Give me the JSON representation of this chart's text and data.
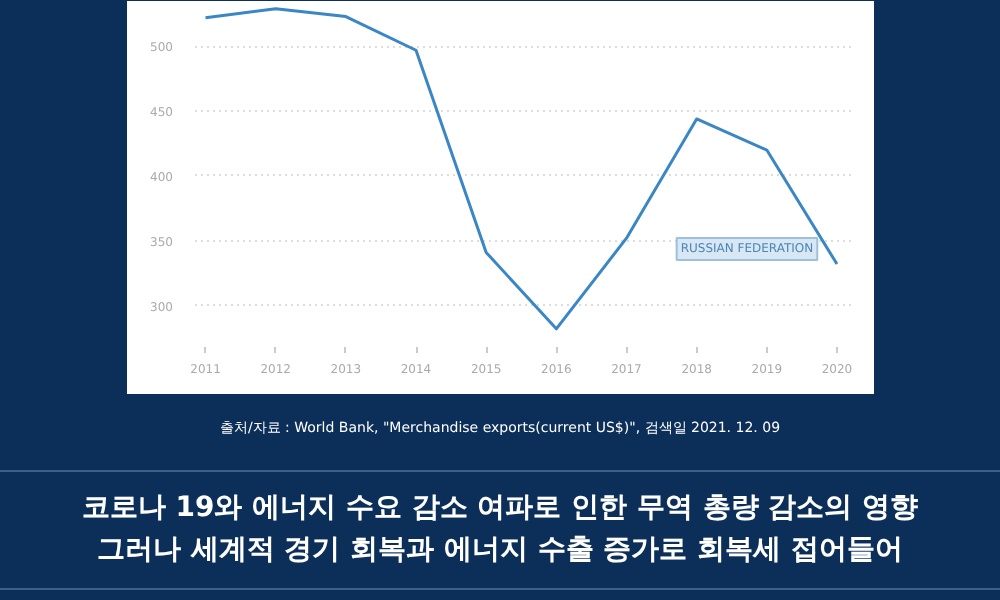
{
  "chart_data": {
    "type": "line",
    "x": [
      2011,
      2012,
      2013,
      2014,
      2015,
      2016,
      2017,
      2018,
      2019,
      2020
    ],
    "series": [
      {
        "name": "RUSSIAN FEDERATION",
        "color": "#3b86c4",
        "values": [
          522,
          529,
          523,
          497,
          341,
          282,
          352,
          444,
          420,
          332
        ]
      }
    ],
    "xlim": [
      2010.85,
      2020.2
    ],
    "xticks": [
      2011,
      2012,
      2013,
      2014,
      2015,
      2016,
      2017,
      2018,
      2019,
      2020
    ],
    "ylim": [
      268,
      535
    ],
    "yticks": [
      300,
      350,
      400,
      450,
      500
    ],
    "grid": "y",
    "annotations": [
      "출처/자료 : World Bank, \"Merchandise exports(current US$)\", 검색일 2021. 12. 09",
      "코로나 19와 에너지 수요 감소 여파로 인한 무역 총량 감소의 영향",
      "그러나 세계적 경기 회복과 에너지 수출 증가로 회복세 접어들어"
    ]
  }
}
